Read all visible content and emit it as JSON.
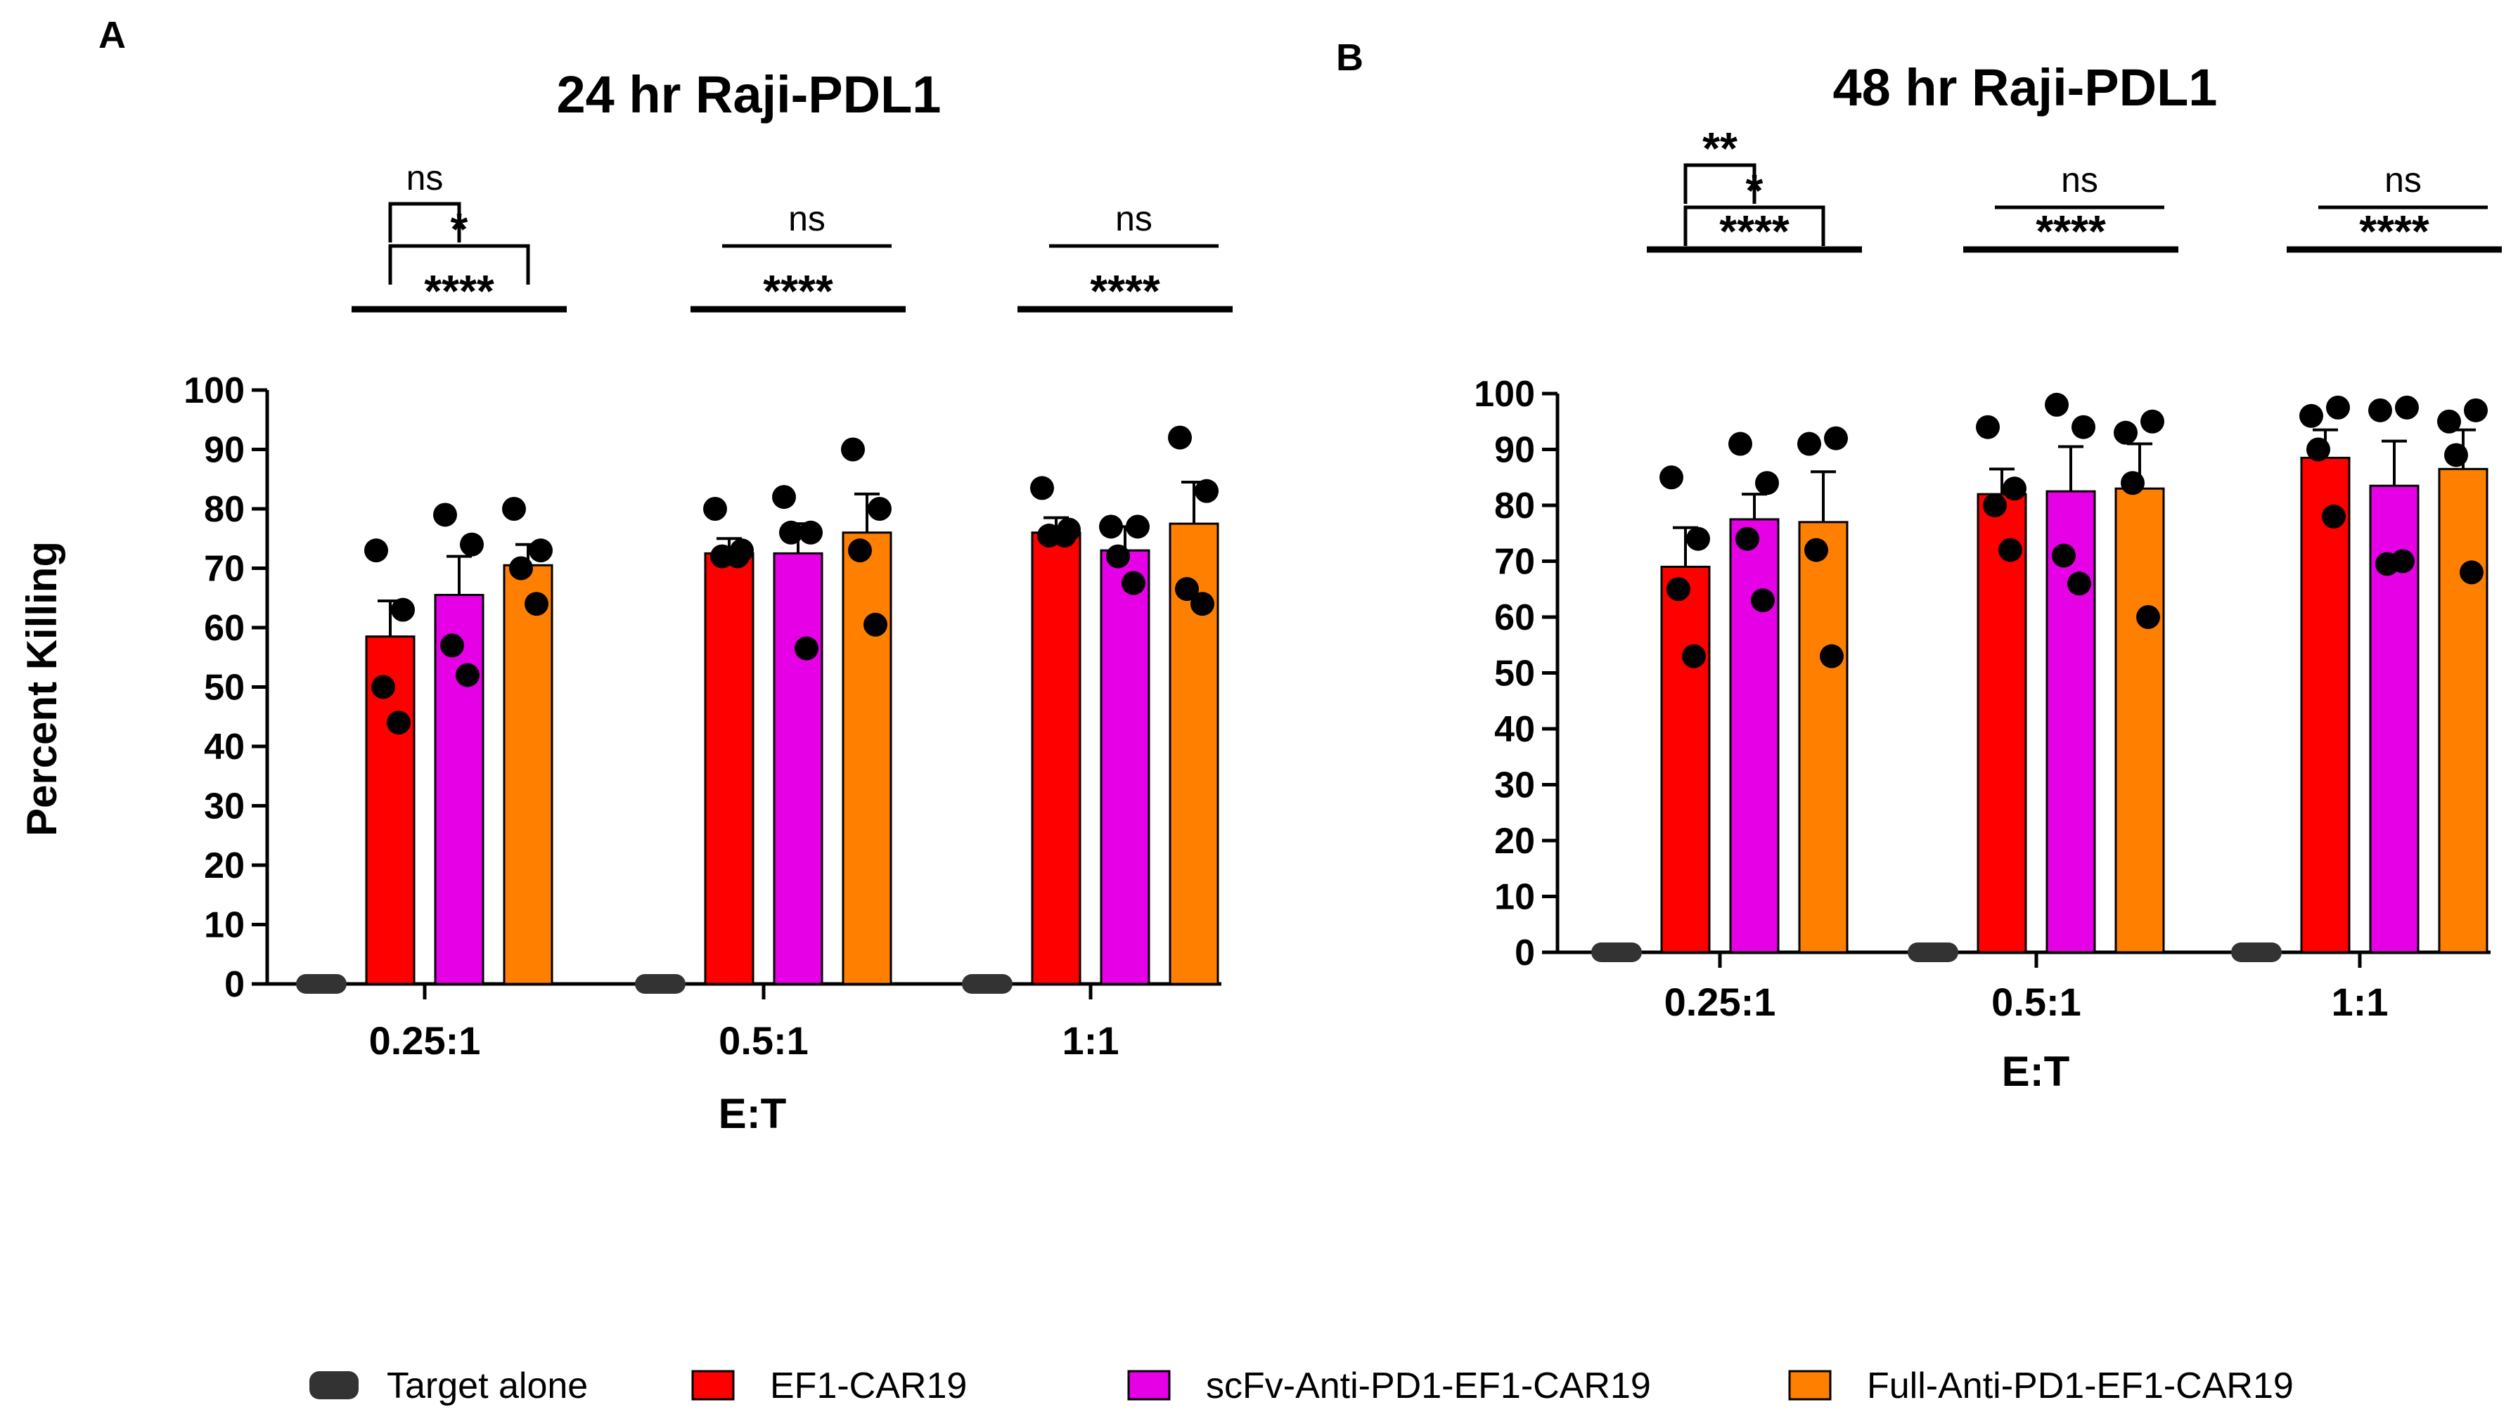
{
  "chart_data": [
    {
      "type": "bar",
      "panel": "A",
      "title": "24 hr Raji-PDL1",
      "xlabel": "E:T",
      "ylabel": "Percent Killing",
      "ylim": [
        0,
        100
      ],
      "yticks": [
        0,
        10,
        20,
        30,
        40,
        50,
        60,
        70,
        80,
        90,
        100
      ],
      "categories": [
        "0.25:1",
        "0.5:1",
        "1:1"
      ],
      "series": [
        {
          "name": "Target alone",
          "values": [
            0,
            0,
            0
          ],
          "errors": [
            0,
            0,
            0
          ],
          "points": [
            [
              0
            ],
            [
              0
            ],
            [
              0
            ]
          ]
        },
        {
          "name": "EF1-CAR19",
          "values": [
            58.5,
            72.5,
            76
          ],
          "errors": [
            6,
            2.5,
            2.5
          ],
          "points": [
            [
              73,
              63,
              50,
              44
            ],
            [
              80,
              73,
              72,
              72
            ],
            [
              83.5,
              76.5,
              75.5,
              75.5
            ]
          ]
        },
        {
          "name": "scFv-Anti-PD1-EF1-CAR19",
          "values": [
            65.5,
            72.5,
            73
          ],
          "errors": [
            6.5,
            5,
            4
          ],
          "points": [
            [
              79,
              74,
              57,
              52
            ],
            [
              82,
              76,
              76,
              56.5
            ],
            [
              77,
              77,
              72,
              67.5
            ]
          ]
        },
        {
          "name": "Full-Anti-PD1-EF1-CAR19",
          "values": [
            70.5,
            76,
            77.5
          ],
          "errors": [
            3.5,
            6.5,
            7
          ],
          "points": [
            [
              80,
              73,
              70,
              64
            ],
            [
              90,
              80,
              73,
              60.5
            ],
            [
              92,
              83,
              66.5,
              64
            ]
          ]
        }
      ],
      "significance": [
        {
          "from": 1,
          "to": 3,
          "label": "****",
          "style": "line",
          "level": 0
        },
        {
          "from": 1,
          "to": 3,
          "label": "*",
          "style": "bracket",
          "level": 1
        },
        {
          "from": 1,
          "to": 2,
          "label": "ns",
          "style": "bracket",
          "level": 2
        }
      ],
      "significance_groups": [
        [
          {
            "from": 1,
            "to": 3,
            "label": "****",
            "style": "line",
            "level": 0
          },
          {
            "from": 1,
            "to": 3,
            "label": "*",
            "style": "bracket",
            "level": 1
          },
          {
            "from": 1,
            "to": 2,
            "label": "ns",
            "style": "bracket",
            "level": 2
          }
        ],
        [
          {
            "from": 1,
            "to": 3,
            "label": "****",
            "style": "line",
            "level": 0
          },
          {
            "from": 1,
            "to": 3,
            "label": "ns",
            "style": "line",
            "level": 1
          }
        ],
        [
          {
            "from": 1,
            "to": 3,
            "label": "****",
            "style": "line",
            "level": 0
          },
          {
            "from": 1,
            "to": 3,
            "label": "ns",
            "style": "line",
            "level": 1
          }
        ]
      ]
    },
    {
      "type": "bar",
      "panel": "B",
      "title": "48 hr Raji-PDL1",
      "xlabel": "E:T",
      "ylabel": "",
      "ylim": [
        0,
        100
      ],
      "yticks": [
        0,
        10,
        20,
        30,
        40,
        50,
        60,
        70,
        80,
        90,
        100
      ],
      "categories": [
        "0.25:1",
        "0.5:1",
        "1:1"
      ],
      "series": [
        {
          "name": "Target alone",
          "values": [
            0,
            0,
            0
          ],
          "errors": [
            0,
            0,
            0
          ],
          "points": [
            [
              0
            ],
            [
              0
            ],
            [
              0
            ]
          ]
        },
        {
          "name": "EF1-CAR19",
          "values": [
            69,
            82,
            88.5
          ],
          "errors": [
            7,
            4.5,
            5
          ],
          "points": [
            [
              85,
              74,
              65,
              53
            ],
            [
              94,
              83,
              80,
              72
            ],
            [
              96,
              97.5,
              90,
              78
            ]
          ]
        },
        {
          "name": "scFv-Anti-PD1-EF1-CAR19",
          "values": [
            77.5,
            82.5,
            83.5
          ],
          "errors": [
            4.5,
            8,
            8
          ],
          "points": [
            [
              91,
              84,
              74,
              63
            ],
            [
              98,
              94,
              71,
              66
            ],
            [
              97,
              97.5,
              69.5,
              70
            ]
          ]
        },
        {
          "name": "Full-Anti-PD1-EF1-CAR19",
          "values": [
            77,
            83,
            86.5
          ],
          "errors": [
            9,
            8,
            7
          ],
          "points": [
            [
              91,
              92,
              72,
              53
            ],
            [
              93,
              95,
              84,
              60
            ],
            [
              95,
              97,
              89,
              68
            ]
          ]
        }
      ],
      "significance_groups": [
        [
          {
            "from": 1,
            "to": 3,
            "label": "****",
            "style": "line",
            "level": 0
          },
          {
            "from": 1,
            "to": 3,
            "label": "*",
            "style": "bracket",
            "level": 1
          },
          {
            "from": 1,
            "to": 2,
            "label": "**",
            "style": "bracket",
            "level": 2
          }
        ],
        [
          {
            "from": 1,
            "to": 3,
            "label": "****",
            "style": "line",
            "level": 0
          },
          {
            "from": 1,
            "to": 3,
            "label": "ns",
            "style": "line",
            "level": 1
          }
        ],
        [
          {
            "from": 1,
            "to": 3,
            "label": "****",
            "style": "line",
            "level": 0
          },
          {
            "from": 1,
            "to": 3,
            "label": "ns",
            "style": "line",
            "level": 1
          }
        ]
      ]
    }
  ],
  "legend": [
    {
      "label": "Target alone",
      "color": "#333333"
    },
    {
      "label": "EF1-CAR19",
      "color": "#ff0000"
    },
    {
      "label": "scFv-Anti-PD1-EF1-CAR19",
      "color": "#e600e6"
    },
    {
      "label": "Full-Anti-PD1-EF1-CAR19",
      "color": "#ff8000"
    }
  ],
  "colors": [
    "#333333",
    "#ff0000",
    "#e600e6",
    "#ff8000"
  ]
}
